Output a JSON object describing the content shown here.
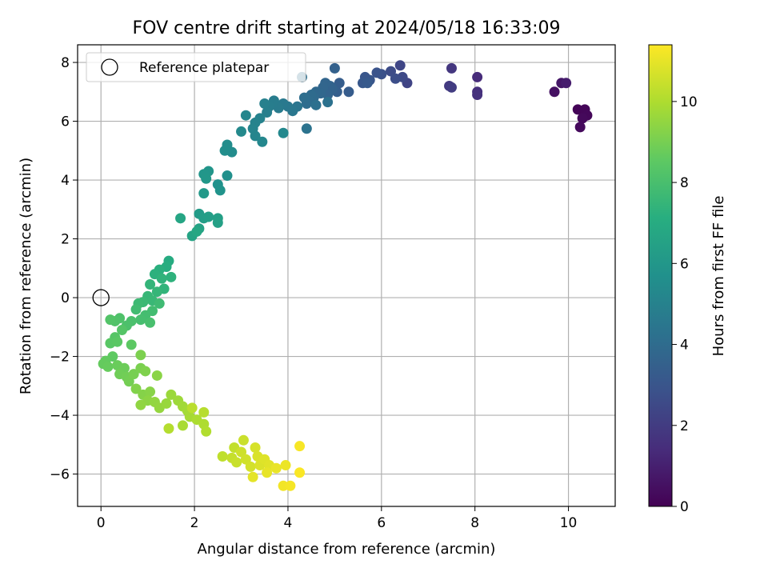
{
  "chart_data": {
    "type": "scatter",
    "title": "FOV centre drift starting at 2024/05/18 16:33:09",
    "xlabel": "Angular distance from reference (arcmin)",
    "ylabel": "Rotation from reference (arcmin)",
    "xlim": [
      -0.5,
      11.0
    ],
    "ylim": [
      -7.1,
      8.6
    ],
    "xticks": [
      0,
      2,
      4,
      6,
      8,
      10
    ],
    "yticks": [
      -6,
      -4,
      -2,
      0,
      2,
      4,
      6,
      8
    ],
    "grid": true,
    "legend": {
      "position": "top-left",
      "entries": [
        "Reference platepar"
      ]
    },
    "reference_point": {
      "x": 0,
      "y": 0
    },
    "colorbar": {
      "label": "Hours from first FF file",
      "min": 0,
      "max": 11.4,
      "ticks": [
        0,
        2,
        4,
        6,
        8,
        10
      ],
      "colormap": "viridis"
    },
    "points": [
      {
        "x": 10.2,
        "y": 6.4,
        "h": 0.1
      },
      {
        "x": 10.35,
        "y": 6.4,
        "h": 0.15
      },
      {
        "x": 10.4,
        "y": 6.2,
        "h": 0.2
      },
      {
        "x": 10.3,
        "y": 6.1,
        "h": 0.25
      },
      {
        "x": 10.25,
        "y": 5.8,
        "h": 0.3
      },
      {
        "x": 9.7,
        "y": 7.0,
        "h": 0.5
      },
      {
        "x": 9.85,
        "y": 7.3,
        "h": 0.7
      },
      {
        "x": 9.95,
        "y": 7.3,
        "h": 0.9
      },
      {
        "x": 8.05,
        "y": 7.5,
        "h": 1.4
      },
      {
        "x": 8.05,
        "y": 7.0,
        "h": 1.5
      },
      {
        "x": 8.05,
        "y": 6.9,
        "h": 1.6
      },
      {
        "x": 7.5,
        "y": 7.8,
        "h": 1.8
      },
      {
        "x": 7.45,
        "y": 7.2,
        "h": 1.9
      },
      {
        "x": 7.5,
        "y": 7.15,
        "h": 2.0
      },
      {
        "x": 6.55,
        "y": 7.3,
        "h": 2.3
      },
      {
        "x": 6.4,
        "y": 7.9,
        "h": 2.4
      },
      {
        "x": 6.45,
        "y": 7.5,
        "h": 2.5
      },
      {
        "x": 6.2,
        "y": 7.7,
        "h": 2.6
      },
      {
        "x": 6.3,
        "y": 7.45,
        "h": 2.7
      },
      {
        "x": 6.0,
        "y": 7.6,
        "h": 2.8
      },
      {
        "x": 5.9,
        "y": 7.65,
        "h": 2.9
      },
      {
        "x": 5.75,
        "y": 7.4,
        "h": 3.0
      },
      {
        "x": 5.65,
        "y": 7.5,
        "h": 3.05
      },
      {
        "x": 5.6,
        "y": 7.3,
        "h": 3.1
      },
      {
        "x": 5.7,
        "y": 7.3,
        "h": 3.2
      },
      {
        "x": 5.3,
        "y": 7.0,
        "h": 3.3
      },
      {
        "x": 5.1,
        "y": 7.3,
        "h": 3.35
      },
      {
        "x": 5.05,
        "y": 7.0,
        "h": 3.4
      },
      {
        "x": 5.0,
        "y": 7.8,
        "h": 3.5
      },
      {
        "x": 4.95,
        "y": 7.1,
        "h": 3.55
      },
      {
        "x": 4.9,
        "y": 7.2,
        "h": 3.6
      },
      {
        "x": 4.85,
        "y": 6.9,
        "h": 3.65
      },
      {
        "x": 4.8,
        "y": 7.3,
        "h": 3.7
      },
      {
        "x": 4.75,
        "y": 7.15,
        "h": 3.75
      },
      {
        "x": 4.7,
        "y": 6.95,
        "h": 3.8
      },
      {
        "x": 4.6,
        "y": 7.0,
        "h": 3.85
      },
      {
        "x": 4.55,
        "y": 6.8,
        "h": 3.9
      },
      {
        "x": 4.5,
        "y": 6.9,
        "h": 3.95
      },
      {
        "x": 4.45,
        "y": 6.7,
        "h": 4.0
      },
      {
        "x": 4.4,
        "y": 6.6,
        "h": 4.05
      },
      {
        "x": 4.35,
        "y": 6.8,
        "h": 4.1
      },
      {
        "x": 4.3,
        "y": 7.5,
        "h": 4.15
      },
      {
        "x": 4.6,
        "y": 6.55,
        "h": 4.2
      },
      {
        "x": 4.85,
        "y": 6.65,
        "h": 4.25
      },
      {
        "x": 4.4,
        "y": 5.75,
        "h": 4.3
      },
      {
        "x": 4.2,
        "y": 6.5,
        "h": 4.4
      },
      {
        "x": 4.1,
        "y": 6.35,
        "h": 4.5
      },
      {
        "x": 4.0,
        "y": 6.5,
        "h": 4.55
      },
      {
        "x": 3.9,
        "y": 6.6,
        "h": 4.6
      },
      {
        "x": 3.8,
        "y": 6.45,
        "h": 4.7
      },
      {
        "x": 3.7,
        "y": 6.7,
        "h": 4.75
      },
      {
        "x": 3.6,
        "y": 6.5,
        "h": 4.8
      },
      {
        "x": 3.55,
        "y": 6.3,
        "h": 4.85
      },
      {
        "x": 3.5,
        "y": 6.6,
        "h": 4.9
      },
      {
        "x": 3.4,
        "y": 6.1,
        "h": 5.0
      },
      {
        "x": 3.3,
        "y": 5.95,
        "h": 5.05
      },
      {
        "x": 3.25,
        "y": 5.75,
        "h": 5.1
      },
      {
        "x": 3.3,
        "y": 5.5,
        "h": 5.15
      },
      {
        "x": 3.1,
        "y": 6.2,
        "h": 5.2
      },
      {
        "x": 3.45,
        "y": 5.3,
        "h": 5.25
      },
      {
        "x": 3.9,
        "y": 5.6,
        "h": 5.3
      },
      {
        "x": 3.0,
        "y": 5.65,
        "h": 5.35
      },
      {
        "x": 2.8,
        "y": 4.95,
        "h": 5.45
      },
      {
        "x": 2.7,
        "y": 5.2,
        "h": 5.5
      },
      {
        "x": 2.65,
        "y": 5.0,
        "h": 5.55
      },
      {
        "x": 2.7,
        "y": 4.15,
        "h": 5.65
      },
      {
        "x": 2.5,
        "y": 3.85,
        "h": 5.75
      },
      {
        "x": 2.55,
        "y": 3.65,
        "h": 5.8
      },
      {
        "x": 2.3,
        "y": 4.3,
        "h": 5.9
      },
      {
        "x": 2.2,
        "y": 4.2,
        "h": 5.95
      },
      {
        "x": 2.25,
        "y": 4.05,
        "h": 6.0
      },
      {
        "x": 2.2,
        "y": 3.55,
        "h": 6.1
      },
      {
        "x": 2.1,
        "y": 2.85,
        "h": 6.2
      },
      {
        "x": 2.2,
        "y": 2.7,
        "h": 6.3
      },
      {
        "x": 2.3,
        "y": 2.75,
        "h": 6.35
      },
      {
        "x": 2.5,
        "y": 2.7,
        "h": 6.4
      },
      {
        "x": 2.5,
        "y": 2.55,
        "h": 6.45
      },
      {
        "x": 2.1,
        "y": 2.35,
        "h": 6.5
      },
      {
        "x": 1.95,
        "y": 2.1,
        "h": 6.6
      },
      {
        "x": 1.7,
        "y": 2.7,
        "h": 6.7
      },
      {
        "x": 2.05,
        "y": 2.25,
        "h": 6.75
      },
      {
        "x": 1.45,
        "y": 1.25,
        "h": 7.0
      },
      {
        "x": 1.4,
        "y": 1.05,
        "h": 7.1
      },
      {
        "x": 1.25,
        "y": 0.95,
        "h": 7.2
      },
      {
        "x": 1.15,
        "y": 0.8,
        "h": 7.25
      },
      {
        "x": 1.5,
        "y": 0.7,
        "h": 7.3
      },
      {
        "x": 1.3,
        "y": 0.65,
        "h": 7.35
      },
      {
        "x": 1.35,
        "y": 0.3,
        "h": 7.4
      },
      {
        "x": 1.05,
        "y": 0.45,
        "h": 7.45
      },
      {
        "x": 1.2,
        "y": 0.2,
        "h": 7.5
      },
      {
        "x": 1.0,
        "y": 0.05,
        "h": 7.55
      },
      {
        "x": 1.1,
        "y": -0.1,
        "h": 7.6
      },
      {
        "x": 0.9,
        "y": -0.15,
        "h": 7.65
      },
      {
        "x": 0.8,
        "y": -0.2,
        "h": 7.7
      },
      {
        "x": 1.25,
        "y": -0.2,
        "h": 7.75
      },
      {
        "x": 0.75,
        "y": -0.4,
        "h": 7.8
      },
      {
        "x": 1.1,
        "y": -0.45,
        "h": 7.85
      },
      {
        "x": 0.95,
        "y": -0.6,
        "h": 7.9
      },
      {
        "x": 0.85,
        "y": -0.75,
        "h": 7.95
      },
      {
        "x": 1.05,
        "y": -0.85,
        "h": 8.0
      },
      {
        "x": 0.65,
        "y": -0.8,
        "h": 8.05
      },
      {
        "x": 0.55,
        "y": -0.95,
        "h": 8.1
      },
      {
        "x": 0.4,
        "y": -0.7,
        "h": 8.15
      },
      {
        "x": 0.3,
        "y": -0.8,
        "h": 8.2
      },
      {
        "x": 0.2,
        "y": -0.75,
        "h": 8.25
      },
      {
        "x": 0.45,
        "y": -1.1,
        "h": 8.3
      },
      {
        "x": 0.3,
        "y": -1.35,
        "h": 8.35
      },
      {
        "x": 0.2,
        "y": -1.55,
        "h": 8.4
      },
      {
        "x": 0.35,
        "y": -1.5,
        "h": 8.45
      },
      {
        "x": 0.65,
        "y": -1.6,
        "h": 8.5
      },
      {
        "x": 0.25,
        "y": -2.0,
        "h": 8.55
      },
      {
        "x": 0.1,
        "y": -2.15,
        "h": 8.6
      },
      {
        "x": 0.05,
        "y": -2.25,
        "h": 8.65
      },
      {
        "x": 0.15,
        "y": -2.35,
        "h": 8.7
      },
      {
        "x": 0.35,
        "y": -2.3,
        "h": 8.75
      },
      {
        "x": 0.5,
        "y": -2.4,
        "h": 8.8
      },
      {
        "x": 0.4,
        "y": -2.6,
        "h": 8.85
      },
      {
        "x": 0.55,
        "y": -2.7,
        "h": 8.9
      },
      {
        "x": 0.6,
        "y": -2.85,
        "h": 8.95
      },
      {
        "x": 0.7,
        "y": -2.6,
        "h": 9.0
      },
      {
        "x": 0.85,
        "y": -2.4,
        "h": 9.05
      },
      {
        "x": 0.85,
        "y": -1.95,
        "h": 9.1
      },
      {
        "x": 0.95,
        "y": -2.5,
        "h": 9.15
      },
      {
        "x": 0.75,
        "y": -3.1,
        "h": 9.2
      },
      {
        "x": 0.9,
        "y": -3.3,
        "h": 9.25
      },
      {
        "x": 1.05,
        "y": -3.2,
        "h": 9.3
      },
      {
        "x": 1.2,
        "y": -2.65,
        "h": 9.35
      },
      {
        "x": 1.0,
        "y": -3.5,
        "h": 9.4
      },
      {
        "x": 0.85,
        "y": -3.65,
        "h": 9.45
      },
      {
        "x": 1.15,
        "y": -3.55,
        "h": 9.5
      },
      {
        "x": 1.25,
        "y": -3.75,
        "h": 9.55
      },
      {
        "x": 1.4,
        "y": -3.6,
        "h": 9.6
      },
      {
        "x": 1.5,
        "y": -3.3,
        "h": 9.65
      },
      {
        "x": 1.65,
        "y": -3.5,
        "h": 9.7
      },
      {
        "x": 1.75,
        "y": -3.7,
        "h": 9.75
      },
      {
        "x": 1.85,
        "y": -3.85,
        "h": 9.8
      },
      {
        "x": 1.9,
        "y": -4.05,
        "h": 9.85
      },
      {
        "x": 1.75,
        "y": -4.35,
        "h": 9.9
      },
      {
        "x": 2.05,
        "y": -4.15,
        "h": 9.95
      },
      {
        "x": 2.2,
        "y": -4.3,
        "h": 10.0
      },
      {
        "x": 2.25,
        "y": -4.55,
        "h": 10.05
      },
      {
        "x": 1.45,
        "y": -4.45,
        "h": 10.1
      },
      {
        "x": 2.2,
        "y": -3.9,
        "h": 10.15
      },
      {
        "x": 1.95,
        "y": -3.75,
        "h": 10.2
      },
      {
        "x": 2.6,
        "y": -5.4,
        "h": 10.3
      },
      {
        "x": 2.85,
        "y": -5.1,
        "h": 10.35
      },
      {
        "x": 2.8,
        "y": -5.45,
        "h": 10.4
      },
      {
        "x": 2.9,
        "y": -5.6,
        "h": 10.45
      },
      {
        "x": 3.05,
        "y": -4.85,
        "h": 10.5
      },
      {
        "x": 3.0,
        "y": -5.25,
        "h": 10.55
      },
      {
        "x": 3.1,
        "y": -5.5,
        "h": 10.6
      },
      {
        "x": 3.2,
        "y": -5.75,
        "h": 10.65
      },
      {
        "x": 3.3,
        "y": -5.1,
        "h": 10.7
      },
      {
        "x": 3.35,
        "y": -5.4,
        "h": 10.75
      },
      {
        "x": 3.4,
        "y": -5.7,
        "h": 10.8
      },
      {
        "x": 3.5,
        "y": -5.5,
        "h": 10.85
      },
      {
        "x": 3.6,
        "y": -5.7,
        "h": 10.9
      },
      {
        "x": 3.25,
        "y": -6.1,
        "h": 10.95
      },
      {
        "x": 3.55,
        "y": -5.95,
        "h": 11.0
      },
      {
        "x": 3.75,
        "y": -5.8,
        "h": 11.05
      },
      {
        "x": 3.95,
        "y": -5.7,
        "h": 11.1
      },
      {
        "x": 3.9,
        "y": -6.4,
        "h": 11.2
      },
      {
        "x": 4.05,
        "y": -6.4,
        "h": 11.25
      },
      {
        "x": 4.25,
        "y": -5.05,
        "h": 11.3
      },
      {
        "x": 4.25,
        "y": -5.95,
        "h": 11.35
      }
    ]
  }
}
